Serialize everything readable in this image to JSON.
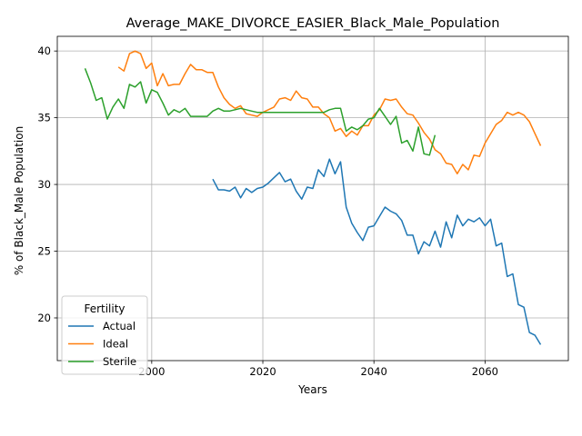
{
  "chart_data": {
    "type": "line",
    "title": "Average_MAKE_DIVORCE_EASIER_Black_Male_Population",
    "xlabel": "Years",
    "ylabel": "% of Black_Male Population",
    "xlim": [
      1983,
      2075
    ],
    "ylim": [
      16.8,
      41.1
    ],
    "xticks": [
      2000,
      2020,
      2040,
      2060
    ],
    "yticks": [
      20,
      25,
      30,
      35,
      40
    ],
    "grid": true,
    "legend": {
      "title": "Fertility",
      "placement": "lower-left"
    },
    "series": [
      {
        "name": "Actual",
        "color": "#1f77b4",
        "x": [
          2011,
          2012,
          2013,
          2014,
          2015,
          2016,
          2017,
          2018,
          2019,
          2020,
          2021,
          2022,
          2023,
          2024,
          2025,
          2026,
          2027,
          2028,
          2029,
          2030,
          2031,
          2032,
          2033,
          2034,
          2035,
          2036,
          2037,
          2038,
          2039,
          2040,
          2041,
          2042,
          2043,
          2044,
          2045,
          2046,
          2047,
          2048,
          2049,
          2050,
          2051,
          2052,
          2053,
          2054,
          2055,
          2056,
          2057,
          2058,
          2059,
          2060,
          2061,
          2062,
          2063,
          2064,
          2065,
          2066,
          2067,
          2068,
          2069,
          2070
        ],
        "y": [
          30.4,
          29.6,
          29.6,
          29.5,
          29.8,
          29.0,
          29.7,
          29.4,
          29.7,
          29.8,
          30.1,
          30.5,
          30.9,
          30.2,
          30.4,
          29.5,
          28.9,
          29.8,
          29.7,
          31.1,
          30.6,
          31.9,
          30.8,
          31.7,
          28.3,
          27.1,
          26.4,
          25.8,
          26.8,
          26.9,
          27.6,
          28.3,
          28.0,
          27.8,
          27.3,
          26.2,
          26.2,
          24.8,
          25.7,
          25.4,
          26.5,
          25.3,
          27.2,
          26.0,
          27.7,
          26.9,
          27.4,
          27.2,
          27.5,
          26.9,
          27.4,
          25.4,
          25.6,
          23.1,
          23.3,
          21.0,
          20.8,
          18.9,
          18.7,
          18.0
        ]
      },
      {
        "name": "Ideal",
        "color": "#ff7f0e",
        "x": [
          1994,
          1995,
          1996,
          1997,
          1998,
          1999,
          2000,
          2001,
          2002,
          2003,
          2004,
          2005,
          2006,
          2007,
          2008,
          2009,
          2010,
          2011,
          2012,
          2013,
          2014,
          2015,
          2016,
          2017,
          2018,
          2019,
          2020,
          2021,
          2022,
          2023,
          2024,
          2025,
          2026,
          2027,
          2028,
          2029,
          2030,
          2031,
          2032,
          2033,
          2034,
          2035,
          2036,
          2037,
          2038,
          2039,
          2040,
          2041,
          2042,
          2043,
          2044,
          2045,
          2046,
          2047,
          2048,
          2049,
          2050,
          2051,
          2052,
          2053,
          2054,
          2055,
          2056,
          2057,
          2058,
          2059,
          2060,
          2061,
          2062,
          2063,
          2064,
          2065,
          2066,
          2067,
          2068,
          2069,
          2070
        ],
        "y": [
          38.8,
          38.5,
          39.8,
          40.0,
          39.8,
          38.7,
          39.1,
          37.4,
          38.3,
          37.4,
          37.5,
          37.5,
          38.3,
          39.0,
          38.6,
          38.6,
          38.4,
          38.4,
          37.3,
          36.5,
          36.0,
          35.7,
          35.9,
          35.3,
          35.2,
          35.1,
          35.4,
          35.6,
          35.8,
          36.4,
          36.5,
          36.3,
          37.0,
          36.5,
          36.4,
          35.8,
          35.8,
          35.3,
          35.0,
          34.0,
          34.2,
          33.6,
          34.0,
          33.7,
          34.4,
          34.4,
          35.2,
          35.6,
          36.4,
          36.3,
          36.4,
          35.8,
          35.3,
          35.2,
          34.6,
          33.9,
          33.4,
          32.6,
          32.3,
          31.6,
          31.5,
          30.8,
          31.5,
          31.1,
          32.2,
          32.1,
          33.1,
          33.8,
          34.5,
          34.8,
          35.4,
          35.2,
          35.4,
          35.2,
          34.7,
          33.8,
          32.9
        ]
      },
      {
        "name": "Sterile",
        "color": "#2ca02c",
        "x": [
          1988,
          1989,
          1990,
          1991,
          1992,
          1993,
          1994,
          1995,
          1996,
          1997,
          1998,
          1999,
          2000,
          2001,
          2002,
          2003,
          2004,
          2005,
          2006,
          2007,
          2008,
          2009,
          2010,
          2011,
          2012,
          2013,
          2014,
          2015,
          2016,
          2017,
          2018,
          2019,
          2020,
          2021,
          2022,
          2023,
          2024,
          2025,
          2026,
          2027,
          2028,
          2029,
          2030,
          2031,
          2032,
          2033,
          2034,
          2035,
          2036,
          2037,
          2038,
          2039,
          2040,
          2041,
          2042,
          2043,
          2044,
          2045,
          2046,
          2047,
          2048,
          2049,
          2050,
          2051
        ],
        "y": [
          38.7,
          37.6,
          36.3,
          36.5,
          34.9,
          35.8,
          36.4,
          35.7,
          37.5,
          37.3,
          37.7,
          36.1,
          37.1,
          36.9,
          36.1,
          35.2,
          35.6,
          35.4,
          35.7,
          35.1,
          35.1,
          35.1,
          35.1,
          35.5,
          35.7,
          35.5,
          35.5,
          35.6,
          35.7,
          35.6,
          35.5,
          35.4,
          35.4,
          35.4,
          35.4,
          35.4,
          35.4,
          35.4,
          35.4,
          35.4,
          35.4,
          35.4,
          35.4,
          35.4,
          35.6,
          35.7,
          35.7,
          34.0,
          34.3,
          34.1,
          34.4,
          34.9,
          35.0,
          35.7,
          35.1,
          34.5,
          35.1,
          33.1,
          33.3,
          32.5,
          34.3,
          32.3,
          32.2,
          33.7
        ]
      }
    ]
  }
}
